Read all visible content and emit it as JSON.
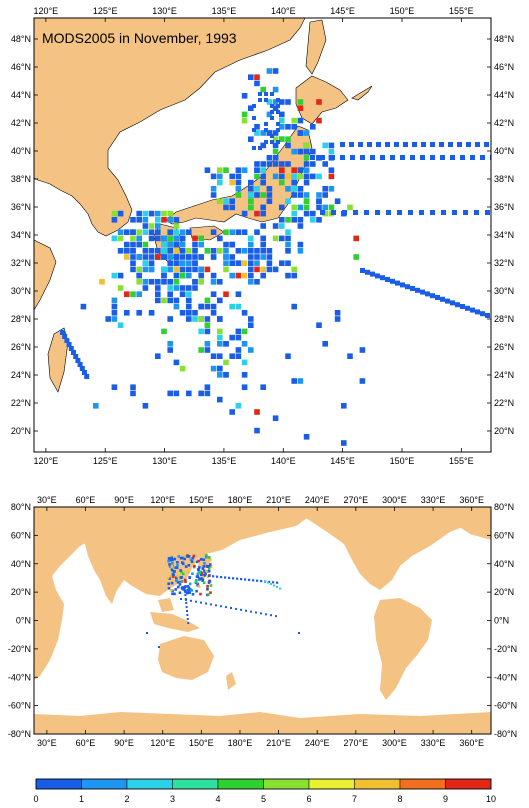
{
  "map_title": "MODS2005 in November, 1993",
  "colors": {
    "land": "#f4c384",
    "ocean": "#ffffff",
    "frame": "#000000",
    "scale": [
      "#1a5ee8",
      "#1e96f0",
      "#2cd0e8",
      "#30e0a0",
      "#30d030",
      "#88e030",
      "#e8f030",
      "#f0c030",
      "#f07020",
      "#e02818"
    ]
  },
  "regional_map": {
    "lon_labels": [
      "120°E",
      "125°E",
      "130°E",
      "135°E",
      "140°E",
      "145°E",
      "150°E",
      "155°E"
    ],
    "lat_labels": [
      "48°N",
      "46°N",
      "44°N",
      "42°N",
      "40°N",
      "38°N",
      "36°N",
      "34°N",
      "32°N",
      "30°N",
      "28°N",
      "26°N",
      "24°N",
      "22°N",
      "20°N"
    ],
    "extent": {
      "lon": [
        119,
        157.5
      ],
      "lat": [
        18.5,
        49.5
      ]
    }
  },
  "global_map": {
    "lon_labels": [
      "30°E",
      "60°E",
      "90°E",
      "120°E",
      "150°E",
      "180°E",
      "210°E",
      "240°E",
      "270°E",
      "300°E",
      "330°E",
      "360°E"
    ],
    "lat_labels": [
      "80°N",
      "60°N",
      "40°N",
      "20°N",
      "0°N",
      "-20°N",
      "-40°N",
      "-60°N",
      "-80°N"
    ],
    "extent": {
      "lon": [
        20,
        375
      ],
      "lat": [
        -80,
        80
      ]
    }
  },
  "colorbar": {
    "labels": [
      "0",
      "1",
      "2",
      "3",
      "4",
      "5",
      "6",
      "7",
      "8",
      "9",
      "10"
    ]
  }
}
